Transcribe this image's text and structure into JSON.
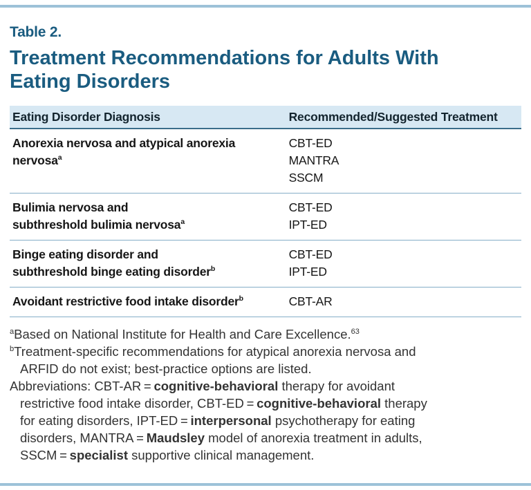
{
  "colors": {
    "title_blue": "#1a5c80",
    "header_bg": "#d7e8f3",
    "rule_blue": "#9dc2d8",
    "header_border": "#3a6d8a",
    "row_border": "#84adc7",
    "text": "#161616",
    "footnote": "#333333"
  },
  "label": "Table 2.",
  "title_lines": [
    "Treatment Recommendations for Adults With",
    "Eating Disorders"
  ],
  "table": {
    "columns": [
      "Eating Disorder Diagnosis",
      "Recommended/Suggested Treatment"
    ],
    "rows": [
      {
        "diagnosis_lines": [
          "Anorexia nervosa and atypical anorexia",
          "nervosa"
        ],
        "marker": "a",
        "treatments": [
          "CBT-ED",
          "MANTRA",
          "SSCM"
        ]
      },
      {
        "diagnosis_lines": [
          "Bulimia nervosa and",
          "subthreshold bulimia nervosa"
        ],
        "marker": "a",
        "treatments": [
          "CBT-ED",
          "IPT-ED"
        ]
      },
      {
        "diagnosis_lines": [
          "Binge eating disorder and",
          "subthreshold binge eating disorder"
        ],
        "marker": "b",
        "treatments": [
          "CBT-ED",
          "IPT-ED"
        ]
      },
      {
        "diagnosis_lines": [
          "Avoidant restrictive food intake disorder"
        ],
        "marker": "b",
        "treatments": [
          "CBT-AR"
        ]
      }
    ]
  },
  "footnotes": [
    {
      "lines": [
        {
          "indent": false,
          "segments": [
            {
              "t": "a",
              "sup": true
            },
            {
              "t": "Based on National Institute for Health and Care Excellence."
            },
            {
              "t": "63",
              "sup": true
            }
          ]
        }
      ]
    },
    {
      "lines": [
        {
          "indent": false,
          "segments": [
            {
              "t": "b",
              "sup": true
            },
            {
              "t": "Treatment-specific recommendations for atypical anorexia nervosa and"
            }
          ]
        },
        {
          "indent": true,
          "segments": [
            {
              "t": "ARFID do not exist; best-practice options are listed."
            }
          ]
        }
      ]
    },
    {
      "lines": [
        {
          "indent": false,
          "segments": [
            {
              "t": "Abbreviations: CBT-AR = "
            },
            {
              "t": "cognitive-behavioral",
              "bold": true
            },
            {
              "t": " therapy for avoidant"
            }
          ]
        },
        {
          "indent": true,
          "segments": [
            {
              "t": "restrictive food intake disorder, CBT-ED = "
            },
            {
              "t": "cognitive-behavioral",
              "bold": true
            },
            {
              "t": " therapy"
            }
          ]
        },
        {
          "indent": true,
          "segments": [
            {
              "t": "for eating disorders, IPT-ED = "
            },
            {
              "t": "interpersonal",
              "bold": true
            },
            {
              "t": " psychotherapy for eating"
            }
          ]
        },
        {
          "indent": true,
          "segments": [
            {
              "t": "disorders, MANTRA = "
            },
            {
              "t": "Maudsley",
              "bold": true
            },
            {
              "t": " model of anorexia treatment in adults,"
            }
          ]
        },
        {
          "indent": true,
          "segments": [
            {
              "t": "SSCM = "
            },
            {
              "t": "specialist",
              "bold": true
            },
            {
              "t": " supportive clinical management."
            }
          ]
        }
      ]
    }
  ]
}
